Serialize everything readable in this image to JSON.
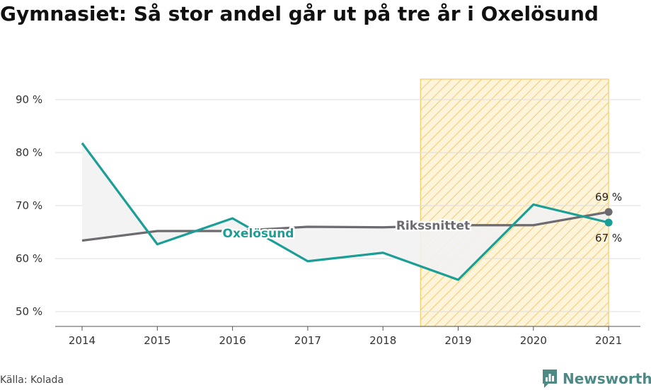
{
  "header": {
    "title": "Gymnasiet: Så stor andel går ut på tre år i Oxelösund"
  },
  "footer": {
    "source": "Källa: Kolada",
    "brand": "Newsworthy",
    "brand_icon": "chart-icon"
  },
  "chart_data": {
    "type": "line",
    "x": [
      "2014",
      "2015",
      "2016",
      "2017",
      "2018",
      "2019",
      "2020",
      "2021"
    ],
    "yticks": [
      "50 %",
      "60 %",
      "70 %",
      "80 %",
      "90 %"
    ],
    "ylim": [
      48,
      94
    ],
    "highlight_range": [
      "2019",
      "2021"
    ],
    "grid": true,
    "series": [
      {
        "name": "Oxelösund",
        "color": "#1a9e96",
        "values": [
          81.8,
          62.7,
          67.6,
          59.5,
          61.1,
          56.0,
          70.2,
          66.8
        ],
        "end_label": "67 %"
      },
      {
        "name": "Rikssnittet",
        "color": "#6e6b70",
        "values": [
          63.4,
          65.2,
          65.2,
          66.0,
          65.9,
          66.3,
          66.3,
          68.8
        ],
        "end_label": "69 %"
      }
    ],
    "colors": {
      "highlight_fill": "#fdf3d7",
      "highlight_stroke": "#f5c96b",
      "gap_fill": "#f2f2f2"
    }
  }
}
